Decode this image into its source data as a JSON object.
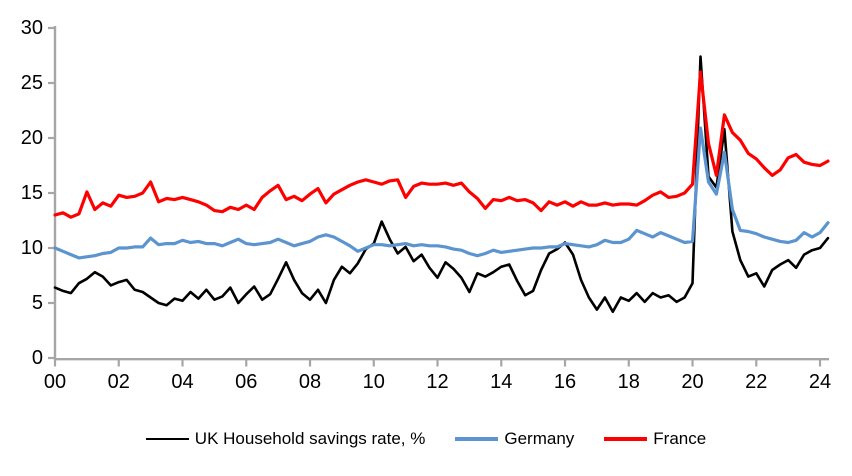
{
  "chart_data": {
    "type": "line",
    "title": "",
    "xlabel": "",
    "ylabel": "",
    "x_unit": "year (quarterly data)",
    "x_start": "2000Q1",
    "x_end": "2024Q2",
    "x_tick_labels": [
      "00",
      "02",
      "04",
      "06",
      "08",
      "10",
      "12",
      "14",
      "16",
      "18",
      "20",
      "22",
      "24"
    ],
    "y_ticks": [
      0,
      5,
      10,
      15,
      20,
      25,
      30
    ],
    "ylim": [
      0,
      30
    ],
    "grid": false,
    "legend_position": "bottom",
    "axis_color": "#a6a6a6",
    "series": [
      {
        "name": "UK Household savings rate, %",
        "color": "#000000",
        "stroke_width": 2.6,
        "values": [
          6.4,
          6.1,
          5.9,
          6.8,
          7.2,
          7.8,
          7.4,
          6.6,
          6.9,
          7.1,
          6.2,
          6.0,
          5.5,
          5.0,
          4.8,
          5.4,
          5.2,
          6.0,
          5.4,
          6.2,
          5.3,
          5.6,
          6.4,
          5.0,
          5.8,
          6.5,
          5.3,
          5.8,
          7.2,
          8.7,
          7.1,
          5.9,
          5.3,
          6.2,
          5.0,
          7.1,
          8.3,
          7.7,
          8.6,
          9.9,
          10.4,
          12.4,
          10.8,
          9.5,
          10.1,
          8.8,
          9.4,
          8.2,
          7.3,
          8.7,
          8.1,
          7.3,
          6.0,
          7.7,
          7.4,
          7.8,
          8.3,
          8.5,
          7.0,
          5.7,
          6.1,
          8.0,
          9.5,
          9.9,
          10.5,
          9.4,
          7.1,
          5.5,
          4.4,
          5.5,
          4.2,
          5.5,
          5.2,
          5.9,
          5.1,
          5.9,
          5.5,
          5.7,
          5.1,
          5.5,
          6.8,
          27.4,
          16.5,
          15.5,
          20.8,
          11.5,
          8.9,
          7.4,
          7.7,
          6.5,
          8.0,
          8.5,
          8.9,
          8.2,
          9.4,
          9.8,
          10.0,
          10.9
        ]
      },
      {
        "name": "Germany",
        "color": "#5b94cf",
        "stroke_width": 3.2,
        "values": [
          10.0,
          9.7,
          9.4,
          9.1,
          9.2,
          9.3,
          9.5,
          9.6,
          10.0,
          10.0,
          10.1,
          10.1,
          10.9,
          10.3,
          10.4,
          10.4,
          10.7,
          10.5,
          10.6,
          10.4,
          10.4,
          10.2,
          10.5,
          10.8,
          10.4,
          10.3,
          10.4,
          10.5,
          10.8,
          10.5,
          10.2,
          10.4,
          10.6,
          11.0,
          11.2,
          11.0,
          10.6,
          10.2,
          9.7,
          10.0,
          10.3,
          10.3,
          10.2,
          10.3,
          10.4,
          10.2,
          10.3,
          10.2,
          10.2,
          10.1,
          9.9,
          9.8,
          9.5,
          9.3,
          9.5,
          9.8,
          9.6,
          9.7,
          9.8,
          9.9,
          10.0,
          10.0,
          10.1,
          10.1,
          10.4,
          10.3,
          10.2,
          10.1,
          10.3,
          10.7,
          10.5,
          10.5,
          10.8,
          11.6,
          11.3,
          11.0,
          11.4,
          11.1,
          10.8,
          10.5,
          10.6,
          20.9,
          16.0,
          14.9,
          18.7,
          13.5,
          11.6,
          11.5,
          11.3,
          11.0,
          10.8,
          10.6,
          10.5,
          10.7,
          11.4,
          11.0,
          11.4,
          12.3
        ]
      },
      {
        "name": "France",
        "color": "#ff0000",
        "stroke_width": 3.2,
        "values": [
          13.0,
          13.2,
          12.8,
          13.1,
          15.1,
          13.5,
          14.1,
          13.8,
          14.8,
          14.6,
          14.7,
          15.0,
          16.0,
          14.2,
          14.5,
          14.4,
          14.6,
          14.4,
          14.2,
          13.9,
          13.4,
          13.3,
          13.7,
          13.5,
          13.9,
          13.5,
          14.6,
          15.2,
          15.7,
          14.4,
          14.7,
          14.3,
          14.9,
          15.4,
          14.1,
          14.9,
          15.3,
          15.7,
          16.0,
          16.2,
          16.0,
          15.8,
          16.1,
          16.2,
          14.6,
          15.6,
          15.9,
          15.8,
          15.8,
          15.9,
          15.7,
          15.9,
          15.1,
          14.5,
          13.6,
          14.4,
          14.3,
          14.6,
          14.3,
          14.4,
          14.1,
          13.4,
          14.2,
          13.9,
          14.2,
          13.8,
          14.2,
          13.9,
          13.9,
          14.1,
          13.9,
          14.0,
          14.0,
          13.9,
          14.3,
          14.8,
          15.1,
          14.6,
          14.7,
          15.0,
          15.8,
          26.0,
          19.5,
          16.6,
          22.1,
          20.5,
          19.8,
          18.6,
          18.1,
          17.3,
          16.6,
          17.1,
          18.2,
          18.5,
          17.8,
          17.6,
          17.5,
          17.9
        ]
      }
    ]
  }
}
